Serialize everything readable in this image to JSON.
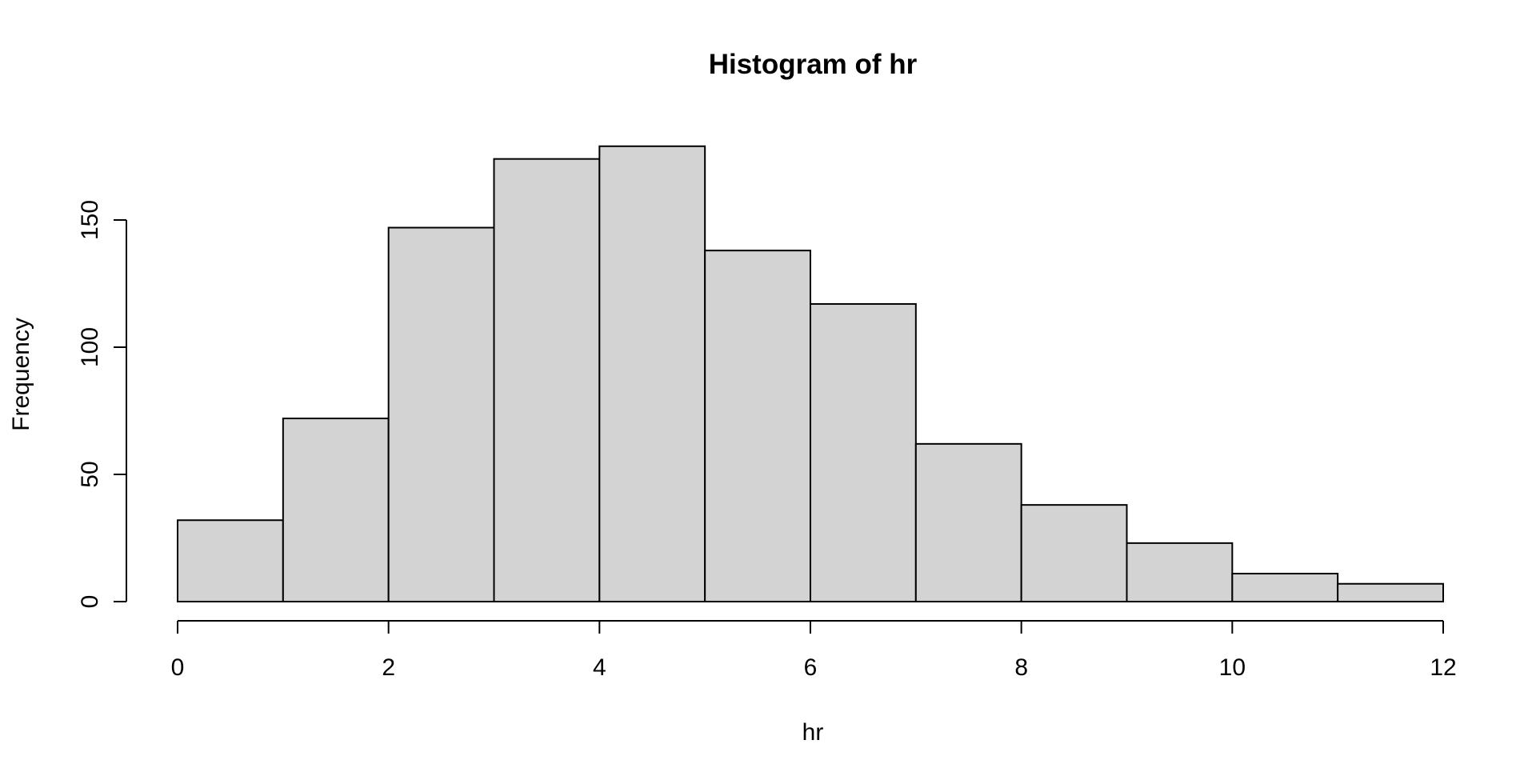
{
  "chart_data": {
    "type": "bar",
    "title": "Histogram of hr",
    "xlabel": "hr",
    "ylabel": "Frequency",
    "bin_edges": [
      0,
      1,
      2,
      3,
      4,
      5,
      6,
      7,
      8,
      9,
      10,
      11,
      12
    ],
    "values": [
      32,
      72,
      147,
      174,
      179,
      138,
      117,
      62,
      38,
      23,
      11,
      7
    ],
    "xlim": [
      0,
      12
    ],
    "ylim": [
      0,
      179
    ],
    "x_ticks": [
      "0",
      "2",
      "4",
      "6",
      "8",
      "10",
      "12"
    ],
    "y_ticks": [
      "0",
      "50",
      "100",
      "150"
    ],
    "grid": false,
    "colors": {
      "bar_fill": "#d3d3d3",
      "bar_stroke": "#000000",
      "background": "#ffffff"
    }
  }
}
